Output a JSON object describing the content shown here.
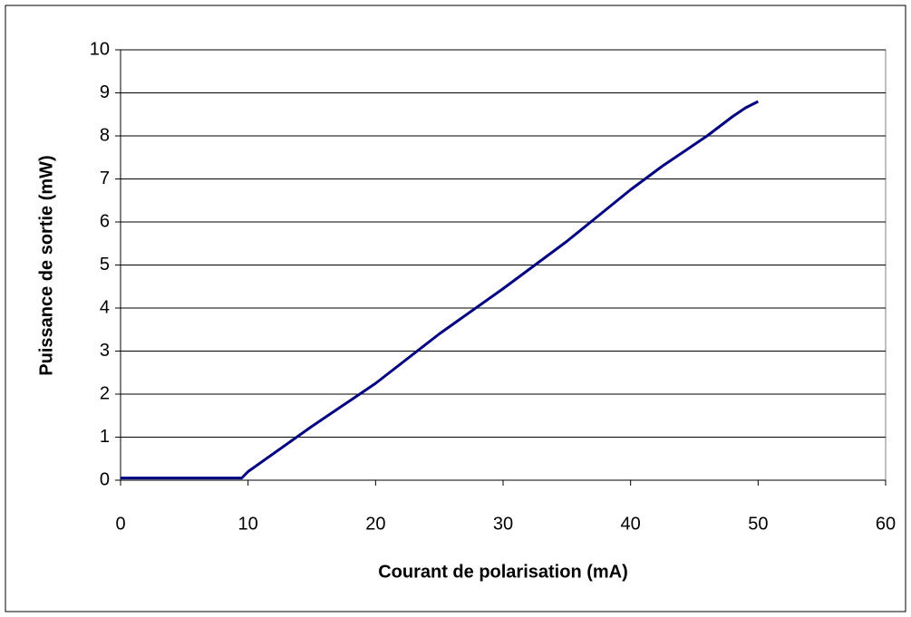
{
  "chart_data": {
    "type": "line",
    "xlabel": "Courant de polarisation (mA)",
    "ylabel": "Puissance de sortie (mW)",
    "xlim": [
      0,
      60
    ],
    "xticks": [
      0,
      10,
      20,
      30,
      40,
      50,
      60
    ],
    "ylim": [
      0,
      10
    ],
    "yticks": [
      0,
      1,
      2,
      3,
      4,
      5,
      6,
      7,
      8,
      9,
      10
    ],
    "grid": true,
    "series": [
      {
        "color": "#000080",
        "x": [
          0,
          9.5,
          10,
          15,
          20,
          25,
          30,
          35,
          37.5,
          40,
          42.5,
          45,
          46,
          48,
          49,
          50
        ],
        "values": [
          0.05,
          0.05,
          0.2,
          1.25,
          2.25,
          3.4,
          4.45,
          5.55,
          6.15,
          6.75,
          7.3,
          7.8,
          8.0,
          8.45,
          8.65,
          8.8
        ]
      }
    ]
  }
}
